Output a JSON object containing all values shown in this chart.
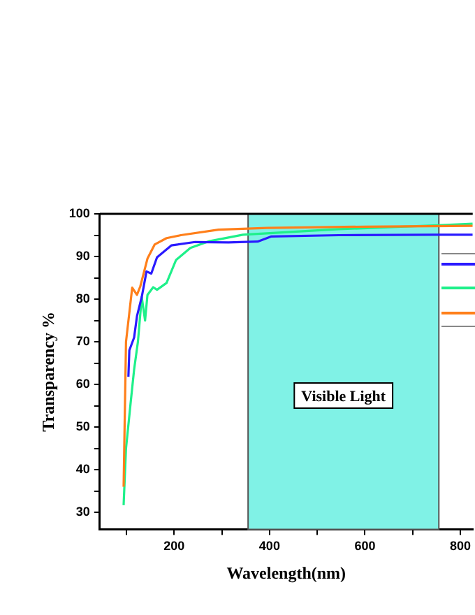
{
  "chart_data": {
    "type": "line",
    "xlabel": "Wavelength(nm)",
    "ylabel": "Transparency %",
    "xlim": [
      44,
      826
    ],
    "xticks": [
      {
        "value": 100,
        "label": null
      },
      200,
      {
        "value": 300,
        "label": null
      },
      400,
      {
        "value": 500,
        "label": null
      },
      600,
      {
        "value": 700,
        "label": null
      },
      800
    ],
    "ylim": [
      26,
      100
    ],
    "yticks": [
      30,
      {
        "value": 35,
        "label": null
      },
      40,
      {
        "value": 45,
        "label": null
      },
      50,
      {
        "value": 55,
        "label": null
      },
      60,
      {
        "value": 65,
        "label": null
      },
      70,
      {
        "value": 75,
        "label": null
      },
      80,
      {
        "value": 85,
        "label": null
      },
      90,
      {
        "value": 95,
        "label": null
      },
      100
    ],
    "grid": false,
    "legend": false,
    "line_style": "solid",
    "marker": "none",
    "bands": [
      {
        "axis": "x",
        "from": 355,
        "to": 755,
        "label": "Visible Light",
        "color": "#80f2e6"
      }
    ],
    "series": [
      {
        "color": "#ff7f1a",
        "x": [
          94,
          99,
          112,
          122,
          129,
          144,
          159,
          184,
          214,
          293,
          395,
          600,
          826
        ],
        "values": [
          36,
          70,
          82.7,
          81,
          83,
          89.5,
          92.8,
          94.3,
          95.0,
          96.3,
          96.7,
          97.0,
          97.2
        ]
      },
      {
        "color": "#2a1aff",
        "x": [
          104,
          106,
          116,
          122,
          132,
          142,
          152,
          164,
          194,
          244,
          314,
          375,
          404,
          545,
          744,
          826
        ],
        "values": [
          61.8,
          68,
          71,
          76,
          80.5,
          86.5,
          86,
          89.8,
          92.6,
          93.4,
          93.3,
          93.5,
          94.7,
          95.0,
          95.1,
          95.1
        ]
      },
      {
        "color": "#1ef08a",
        "x": [
          94,
          99,
          109,
          116,
          124,
          132,
          139,
          144,
          156,
          164,
          184,
          194,
          204,
          234,
          274,
          344,
          545,
          745,
          826
        ],
        "values": [
          31.7,
          45,
          56,
          63.5,
          70,
          80.5,
          75,
          81,
          82.8,
          82.2,
          83.8,
          86.5,
          89.2,
          92,
          93.6,
          95.1,
          96.4,
          97.3,
          97.7
        ]
      }
    ]
  }
}
